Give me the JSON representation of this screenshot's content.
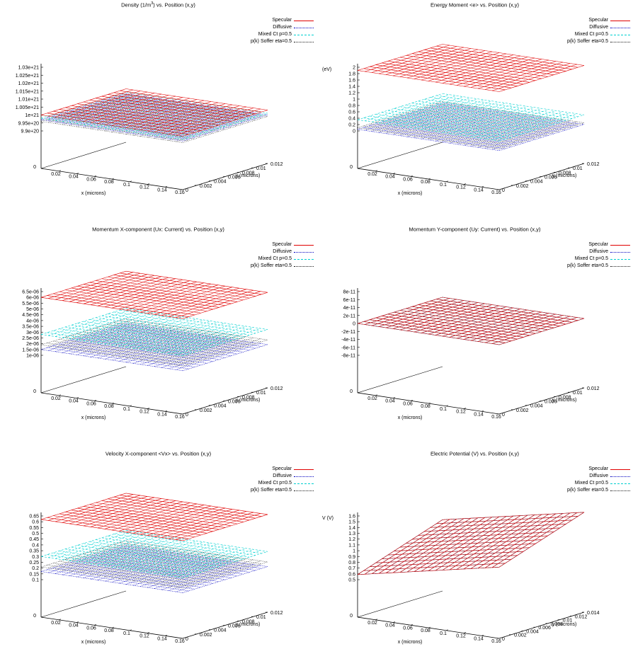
{
  "legend": [
    "Specular",
    "Diffusive",
    "Mixed Ct p=0.5",
    "p(k) Soffer eta=0.5"
  ],
  "series_colors": [
    "#e00000",
    "#0000c0",
    "#00d0d0",
    "#202020"
  ],
  "chart_data": [
    {
      "type": "surface-3d",
      "title_main": "Density (1/m",
      "title_sup": "3",
      "title_rest": ")  vs. Position (x,y)",
      "zlabel": "",
      "xlabel": "x (microns)",
      "ylabel": "y (microns)",
      "xticks": [
        "0",
        "0.02",
        "0.04",
        "0.06",
        "0.08",
        "0.1",
        "0.12",
        "0.14",
        "0.16"
      ],
      "yticks": [
        "0",
        "0.002",
        "0.004",
        "0.006",
        "0.008",
        "0.01",
        "0.012"
      ],
      "zticks": [
        "9.9e+20",
        "9.95e+20",
        "1e+21",
        "1.005e+21",
        "1.01e+21",
        "1.015e+21",
        "1.02e+21",
        "1.025e+21",
        "1.03e+21"
      ],
      "zlim": [
        9.9e+20,
        1.03e+21
      ],
      "series": [
        {
          "name": "Specular",
          "level": 1e+21
        },
        {
          "name": "Diffusive",
          "level": 9.97e+20
        },
        {
          "name": "Mixed Ct p=0.5",
          "level": 9.98e+20
        },
        {
          "name": "p(k) Soffer eta=0.5",
          "level": 9.96e+20
        }
      ]
    },
    {
      "type": "surface-3d",
      "title_main": "Energy Moment <e> vs. Position (x,y)",
      "title_sup": "",
      "title_rest": "",
      "zlabel": "(eV)",
      "xlabel": "x (microns)",
      "ylabel": "y (microns)",
      "xticks": [
        "0",
        "0.02",
        "0.04",
        "0.06",
        "0.08",
        "0.1",
        "0.12",
        "0.14",
        "0.16"
      ],
      "yticks": [
        "0",
        "0.002",
        "0.004",
        "0.006",
        "0.008",
        "0.01",
        "0.012"
      ],
      "zticks": [
        "0",
        "0.2",
        "0.4",
        "0.6",
        "0.8",
        "1",
        "1.2",
        "1.4",
        "1.6",
        "1.8",
        "2"
      ],
      "zlim": [
        0,
        2
      ],
      "series": [
        {
          "name": "Specular",
          "level": 1.9
        },
        {
          "name": "Diffusive",
          "level": 0.05
        },
        {
          "name": "Mixed Ct p=0.5",
          "level": 0.35
        },
        {
          "name": "p(k) Soffer eta=0.5",
          "level": 0.1
        }
      ]
    },
    {
      "type": "surface-3d",
      "title_main": "Momentum X-component (Ux: Current)  vs. Position (x,y)",
      "title_sup": "",
      "title_rest": "",
      "zlabel": "",
      "xlabel": "x (microns)",
      "ylabel": "y (microns)",
      "xticks": [
        "0",
        "0.02",
        "0.04",
        "0.06",
        "0.08",
        "0.1",
        "0.12",
        "0.14",
        "0.16"
      ],
      "yticks": [
        "0",
        "0.002",
        "0.004",
        "0.006",
        "0.008",
        "0.01",
        "0.012"
      ],
      "zticks": [
        "1e-06",
        "1.5e-06",
        "2e-06",
        "2.5e-06",
        "3e-06",
        "3.5e-06",
        "4e-06",
        "4.5e-06",
        "5e-06",
        "5.5e-06",
        "6e-06",
        "6.5e-06"
      ],
      "zlim": [
        1e-06,
        6.5e-06
      ],
      "series": [
        {
          "name": "Specular",
          "level": 6e-06
        },
        {
          "name": "Diffusive",
          "level": 1.5e-06
        },
        {
          "name": "Mixed Ct p=0.5",
          "level": 2.8e-06
        },
        {
          "name": "p(k) Soffer eta=0.5",
          "level": 1.9e-06
        }
      ]
    },
    {
      "type": "surface-3d",
      "title_main": "Momentum Y-component (Uy: Current)  vs. Position (x,y)",
      "title_sup": "",
      "title_rest": "",
      "zlabel": "",
      "xlabel": "x (microns)",
      "ylabel": "y (microns)",
      "xticks": [
        "0",
        "0.02",
        "0.04",
        "0.06",
        "0.08",
        "0.1",
        "0.12",
        "0.14",
        "0.16"
      ],
      "yticks": [
        "0",
        "0.002",
        "0.004",
        "0.006",
        "0.008",
        "0.01",
        "0.012"
      ],
      "zticks": [
        "-8e-11",
        "-6e-11",
        "-4e-11",
        "-2e-11",
        "0",
        "2e-11",
        "4e-11",
        "6e-11",
        "8e-11"
      ],
      "zlim": [
        -8e-11,
        8e-11
      ],
      "series": [
        {
          "name": "Specular",
          "level": 0
        },
        {
          "name": "Diffusive",
          "level": 0
        },
        {
          "name": "Mixed Ct p=0.5",
          "level": 0
        },
        {
          "name": "p(k) Soffer eta=0.5",
          "level": 0
        }
      ]
    },
    {
      "type": "surface-3d",
      "title_main": "Velocity X-component <Vx>  vs. Position  (x,y)",
      "title_sup": "",
      "title_rest": "",
      "zlabel": "",
      "xlabel": "x (microns)",
      "ylabel": "y (microns)",
      "xticks": [
        "0",
        "0.02",
        "0.04",
        "0.06",
        "0.08",
        "0.1",
        "0.12",
        "0.14",
        "0.16"
      ],
      "yticks": [
        "0",
        "0.002",
        "0.004",
        "0.006",
        "0.008",
        "0.01",
        "0.012"
      ],
      "zticks": [
        "0.1",
        "0.15",
        "0.2",
        "0.25",
        "0.3",
        "0.35",
        "0.4",
        "0.45",
        "0.5",
        "0.55",
        "0.6",
        "0.65"
      ],
      "zlim": [
        0.1,
        0.65
      ],
      "series": [
        {
          "name": "Specular",
          "level": 0.62
        },
        {
          "name": "Diffusive",
          "level": 0.17
        },
        {
          "name": "Mixed Ct p=0.5",
          "level": 0.3
        },
        {
          "name": "p(k) Soffer eta=0.5",
          "level": 0.21
        }
      ]
    },
    {
      "type": "surface-3d",
      "title_main": "Electric Potential (V)  vs. Position (x,y)",
      "title_sup": "",
      "title_rest": "",
      "zlabel": "V (V)",
      "xlabel": "x (microns)",
      "ylabel": "y (microns)",
      "xticks": [
        "0",
        "0.02",
        "0.04",
        "0.06",
        "0.08",
        "0.1",
        "0.12",
        "0.14",
        "0.16"
      ],
      "yticks": [
        "0",
        "0.002",
        "0.004",
        "0.006",
        "0.008",
        "0.01",
        "0.012",
        "0.014"
      ],
      "zticks": [
        "0.5",
        "0.6",
        "0.7",
        "0.8",
        "0.9",
        "1",
        "1.1",
        "1.2",
        "1.3",
        "1.4",
        "1.5",
        "1.6"
      ],
      "zlim": [
        0.5,
        1.6
      ],
      "series": [
        {
          "name": "Specular",
          "level": 0.55
        },
        {
          "name": "Diffusive",
          "level": 0.55
        },
        {
          "name": "Mixed Ct p=0.5",
          "level": 0.55
        },
        {
          "name": "p(k) Soffer eta=0.5",
          "level": 0.55
        }
      ]
    }
  ]
}
